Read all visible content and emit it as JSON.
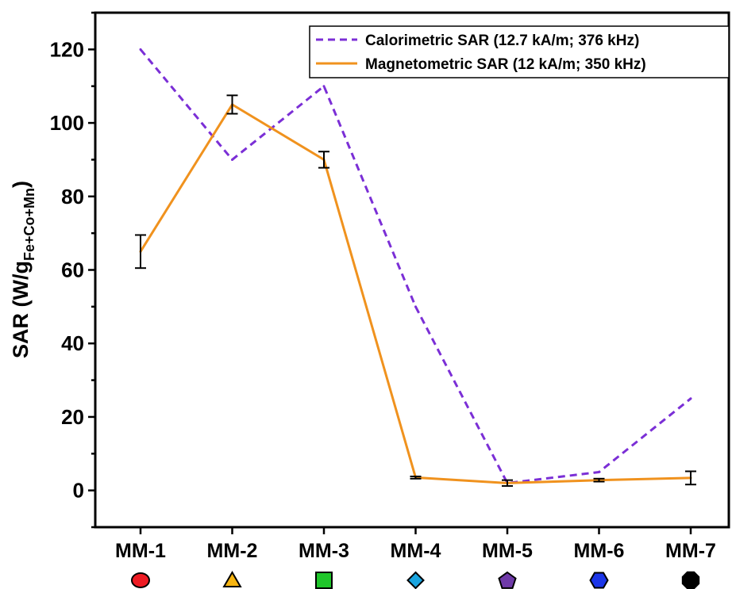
{
  "chart_data": {
    "type": "line",
    "categories": [
      "MM-1",
      "MM-2",
      "MM-3",
      "MM-4",
      "MM-5",
      "MM-6",
      "MM-7"
    ],
    "series": [
      {
        "name": "Calorimetric SAR (12.7 kA/m; 376 kHz)",
        "color": "#7b2fd6",
        "style": "dashed",
        "values": [
          120,
          90,
          110,
          50,
          2,
          5,
          25
        ]
      },
      {
        "name": "Magnetometric SAR (12 kA/m; 350 kHz)",
        "color": "#f0921e",
        "style": "solid",
        "values": [
          65,
          105,
          90,
          3.5,
          2,
          2.8,
          3.4
        ],
        "errors": [
          4.5,
          2.5,
          2.2,
          0.3,
          0.8,
          0.4,
          1.8
        ]
      }
    ],
    "ylabel_main": "SAR (W/g",
    "ylabel_sub": "Fe+Co+Mn",
    "ylabel_close": ")",
    "ylim": [
      -10,
      130
    ],
    "yticks": [
      0,
      20,
      40,
      60,
      80,
      100,
      120
    ],
    "legend_position": "top-right",
    "markers": [
      {
        "shape": "ellipse",
        "color": "#ee1c24"
      },
      {
        "shape": "triangle",
        "color": "#f7b512"
      },
      {
        "shape": "square",
        "color": "#1fc62a"
      },
      {
        "shape": "diamond",
        "color": "#1aa5e0"
      },
      {
        "shape": "pentagon",
        "color": "#6f3aa8"
      },
      {
        "shape": "hexagon",
        "color": "#1c36e8"
      },
      {
        "shape": "octagon",
        "color": "#000000"
      }
    ]
  }
}
